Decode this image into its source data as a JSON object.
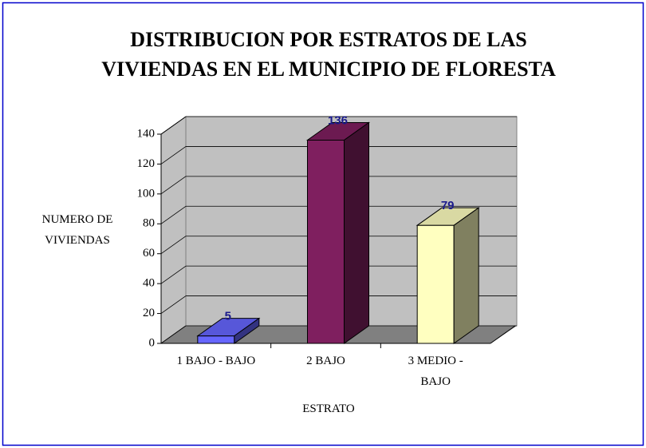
{
  "chart_data": {
    "type": "bar3d",
    "title": "DISTRIBUCION POR ESTRATOS DE LAS VIVIENDAS EN EL MUNICIPIO DE FLORESTA",
    "x_label": "ESTRATO",
    "y_label": "NUMERO DE VIVIENDAS",
    "categories": [
      "1 BAJO - BAJO",
      "2 BAJO",
      "3 MEDIO - BAJO"
    ],
    "values": [
      5,
      136,
      79
    ],
    "colors": [
      "#6666ff",
      "#7f1f5f",
      "#ffffc0"
    ],
    "ylim": [
      0,
      140
    ],
    "yticks": [
      0,
      20,
      40,
      60,
      80,
      100,
      120,
      140
    ],
    "grid": true
  }
}
